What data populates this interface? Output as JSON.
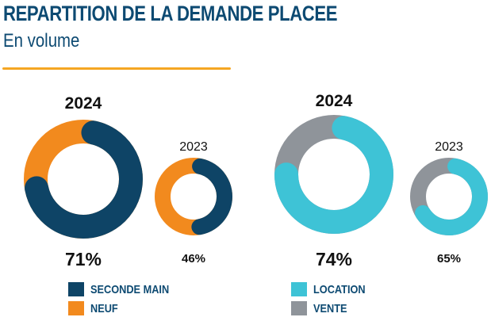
{
  "header": {
    "title": "REPARTITION DE LA DEMANDE PLACEE",
    "subtitle": "En volume"
  },
  "colors": {
    "seconde_main": "#0e4466",
    "neuf": "#f28a1e",
    "location": "#3ec3d6",
    "vente": "#8f949a",
    "title": "#0d4a72",
    "accent": "#f5a623"
  },
  "chart_data": [
    {
      "type": "pie",
      "title": "2024",
      "labels": [
        "SECONDE MAIN",
        "NEUF"
      ],
      "values": [
        71,
        29
      ],
      "value_label": "71%"
    },
    {
      "type": "pie",
      "title": "2023",
      "labels": [
        "SECONDE MAIN",
        "NEUF"
      ],
      "values": [
        46,
        54
      ],
      "value_label": "46%"
    },
    {
      "type": "pie",
      "title": "2024",
      "labels": [
        "LOCATION",
        "VENTE"
      ],
      "values": [
        74,
        26
      ],
      "value_label": "74%"
    },
    {
      "type": "pie",
      "title": "2023",
      "labels": [
        "LOCATION",
        "VENTE"
      ],
      "values": [
        65,
        35
      ],
      "value_label": "65%"
    }
  ],
  "legend_left": [
    "SECONDE MAIN",
    "NEUF"
  ],
  "legend_right": [
    "LOCATION",
    "VENTE"
  ]
}
